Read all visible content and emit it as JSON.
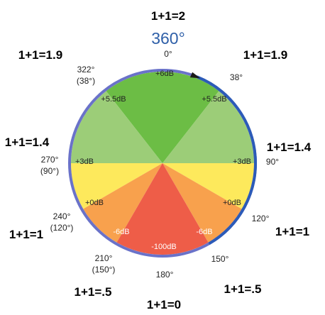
{
  "title": "360°",
  "colors": {
    "green_dark": "#6cbd45",
    "green_light": "#9ccd78",
    "yellow": "#fde95c",
    "orange": "#f8a14d",
    "red": "#ee5d48",
    "rim": "#6a72c9",
    "rim_active": "#2c5bb8"
  },
  "sum_labels": {
    "top": "1+1=2",
    "upper_left": "1+1=1.9",
    "upper_right": "1+1=1.9",
    "mid_left": "1+1=1.4",
    "mid_right": "1+1=1.4",
    "lower_left": "1+1=1",
    "lower_right": "1+1=1",
    "bottom_left": "1+1=.5",
    "bottom_right": "1+1=.5",
    "bottom": "1+1=0"
  },
  "angle_labels": {
    "a0": "0°",
    "a38": "38°",
    "a322": "322°",
    "a322_alt": "(38°)",
    "a90": "90°",
    "a270": "270°",
    "a270_alt": "(90°)",
    "a120": "120°",
    "a240": "240°",
    "a240_alt": "(120°)",
    "a150": "150°",
    "a210": "210°",
    "a210_alt": "(150°)",
    "a180": "180°"
  },
  "db_labels": {
    "top": "+6dB",
    "upper_left": "+5.5dB",
    "upper_right": "+5.5dB",
    "mid_left": "+3dB",
    "mid_right": "+3dB",
    "lower_left": "+0dB",
    "lower_right": "+0dB",
    "low_left": "-6dB",
    "low_right": "-6dB",
    "bottom": "-100dB"
  }
}
